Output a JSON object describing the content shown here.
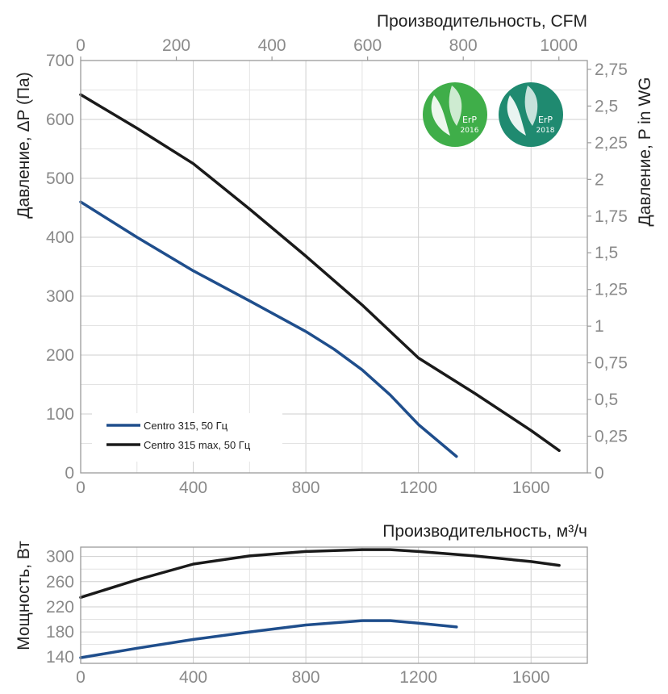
{
  "colors": {
    "series_1": "#1f4e8c",
    "series_2": "#1a1a1a",
    "badge_2016": "#3fae49",
    "badge_2018": "#1f8a70"
  },
  "badges": [
    {
      "name": "erp-2016",
      "line1": "ErP",
      "line2": "2016"
    },
    {
      "name": "erp-2018",
      "line1": "ErP",
      "line2": "2018"
    }
  ],
  "chart_data": [
    {
      "type": "line",
      "title": "",
      "xlabel_top": "Производительность, CFM",
      "ylabel_left": "Давление, ΔP (Па)",
      "ylabel_right": "Давление,  P in WG",
      "xlim": [
        0,
        1800
      ],
      "ylim": [
        0,
        700
      ],
      "x_ticks_bottom": [
        0,
        400,
        800,
        1200,
        1600
      ],
      "x_ticks_top": [
        {
          "label": "0",
          "cfm": 0
        },
        {
          "label": "200",
          "cfm": 200
        },
        {
          "label": "400",
          "cfm": 400
        },
        {
          "label": "600",
          "cfm": 600
        },
        {
          "label": "800",
          "cfm": 800
        },
        {
          "label": "1000",
          "cfm": 1000
        }
      ],
      "y_ticks_left": [
        0,
        100,
        200,
        300,
        400,
        500,
        600,
        700
      ],
      "y_ticks_right": [
        {
          "label": "0",
          "value": 0
        },
        {
          "label": "0,25",
          "value": 0.25
        },
        {
          "label": "0,5",
          "value": 0.5
        },
        {
          "label": "0,75",
          "value": 0.75
        },
        {
          "label": "1",
          "value": 1
        },
        {
          "label": "1,25",
          "value": 1.25
        },
        {
          "label": "1,5",
          "value": 1.5
        },
        {
          "label": "1,75",
          "value": 1.75
        },
        {
          "label": "2",
          "value": 2
        },
        {
          "label": "2,25",
          "value": 2.25
        },
        {
          "label": "2,5",
          "value": 2.5
        },
        {
          "label": "2,75",
          "value": 2.75
        }
      ],
      "legend_position": "bottom-left",
      "series": [
        {
          "name": "Centro 315, 50 Гц",
          "x": [
            0,
            200,
            400,
            600,
            800,
            900,
            1000,
            1100,
            1200,
            1335
          ],
          "y": [
            460,
            400,
            343,
            292,
            240,
            210,
            175,
            132,
            82,
            28
          ]
        },
        {
          "name": "Centro 315 max, 50 Гц",
          "x": [
            0,
            200,
            400,
            600,
            800,
            1000,
            1200,
            1400,
            1600,
            1700
          ],
          "y": [
            642,
            585,
            525,
            448,
            368,
            285,
            195,
            135,
            72,
            38
          ]
        }
      ]
    },
    {
      "type": "line",
      "title": "",
      "xlabel": "Производительность, м³/ч",
      "ylabel": "Мощность, Вт",
      "xlim": [
        0,
        1800
      ],
      "ylim": [
        130,
        315
      ],
      "x_ticks": [
        0,
        400,
        800,
        1200,
        1600
      ],
      "y_ticks": [
        140,
        180,
        220,
        260,
        300
      ],
      "series": [
        {
          "name": "Centro 315, 50 Гц",
          "x": [
            0,
            200,
            400,
            600,
            800,
            1000,
            1100,
            1200,
            1335
          ],
          "y": [
            139,
            154,
            168,
            180,
            191,
            198,
            198,
            194,
            188
          ]
        },
        {
          "name": "Centro 315 max, 50 Гц",
          "x": [
            0,
            200,
            400,
            600,
            800,
            1000,
            1100,
            1200,
            1400,
            1600,
            1700
          ],
          "y": [
            235,
            263,
            288,
            301,
            308,
            311,
            311,
            308,
            301,
            292,
            286
          ]
        }
      ]
    }
  ]
}
